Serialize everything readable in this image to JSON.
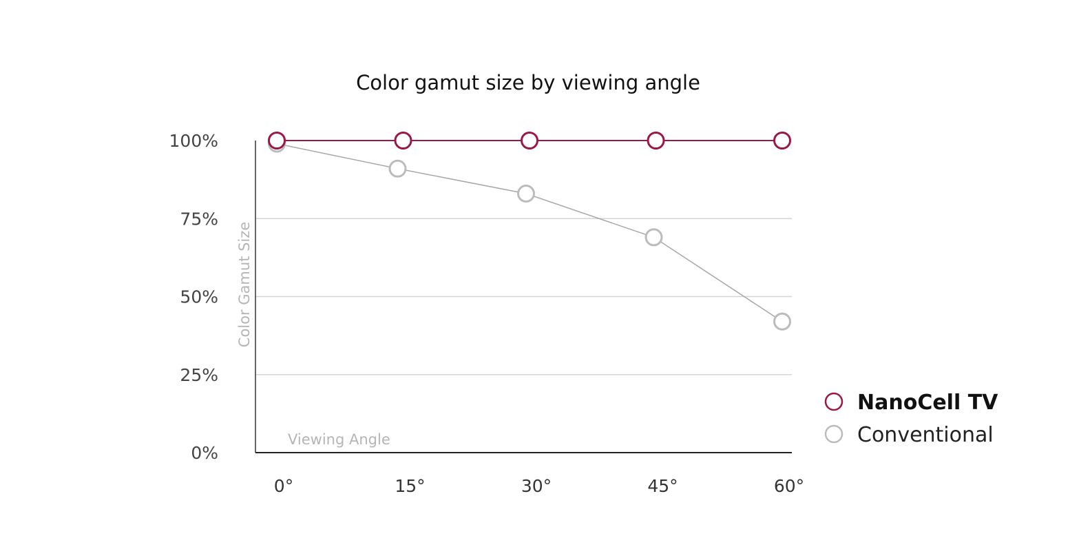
{
  "chart_data": {
    "type": "line",
    "title": "Color gamut size by viewing angle",
    "xlabel": "Viewing Angle",
    "ylabel": "Color Gamut Size",
    "categories": [
      "0°",
      "15°",
      "30°",
      "45°",
      "60°"
    ],
    "x": [
      0,
      15,
      30,
      45,
      60
    ],
    "y_ticks": [
      "0%",
      "25%",
      "50%",
      "75%",
      "100%"
    ],
    "ylim": [
      0,
      100
    ],
    "grid": true,
    "legend_position": "right",
    "series": [
      {
        "name": "NanoCell TV",
        "values": [
          100,
          100,
          100,
          100,
          100
        ],
        "color": "#9b1748"
      },
      {
        "name": "Conventional",
        "values": [
          99,
          91,
          83,
          69,
          42
        ],
        "color": "#bbbbbb"
      }
    ]
  }
}
